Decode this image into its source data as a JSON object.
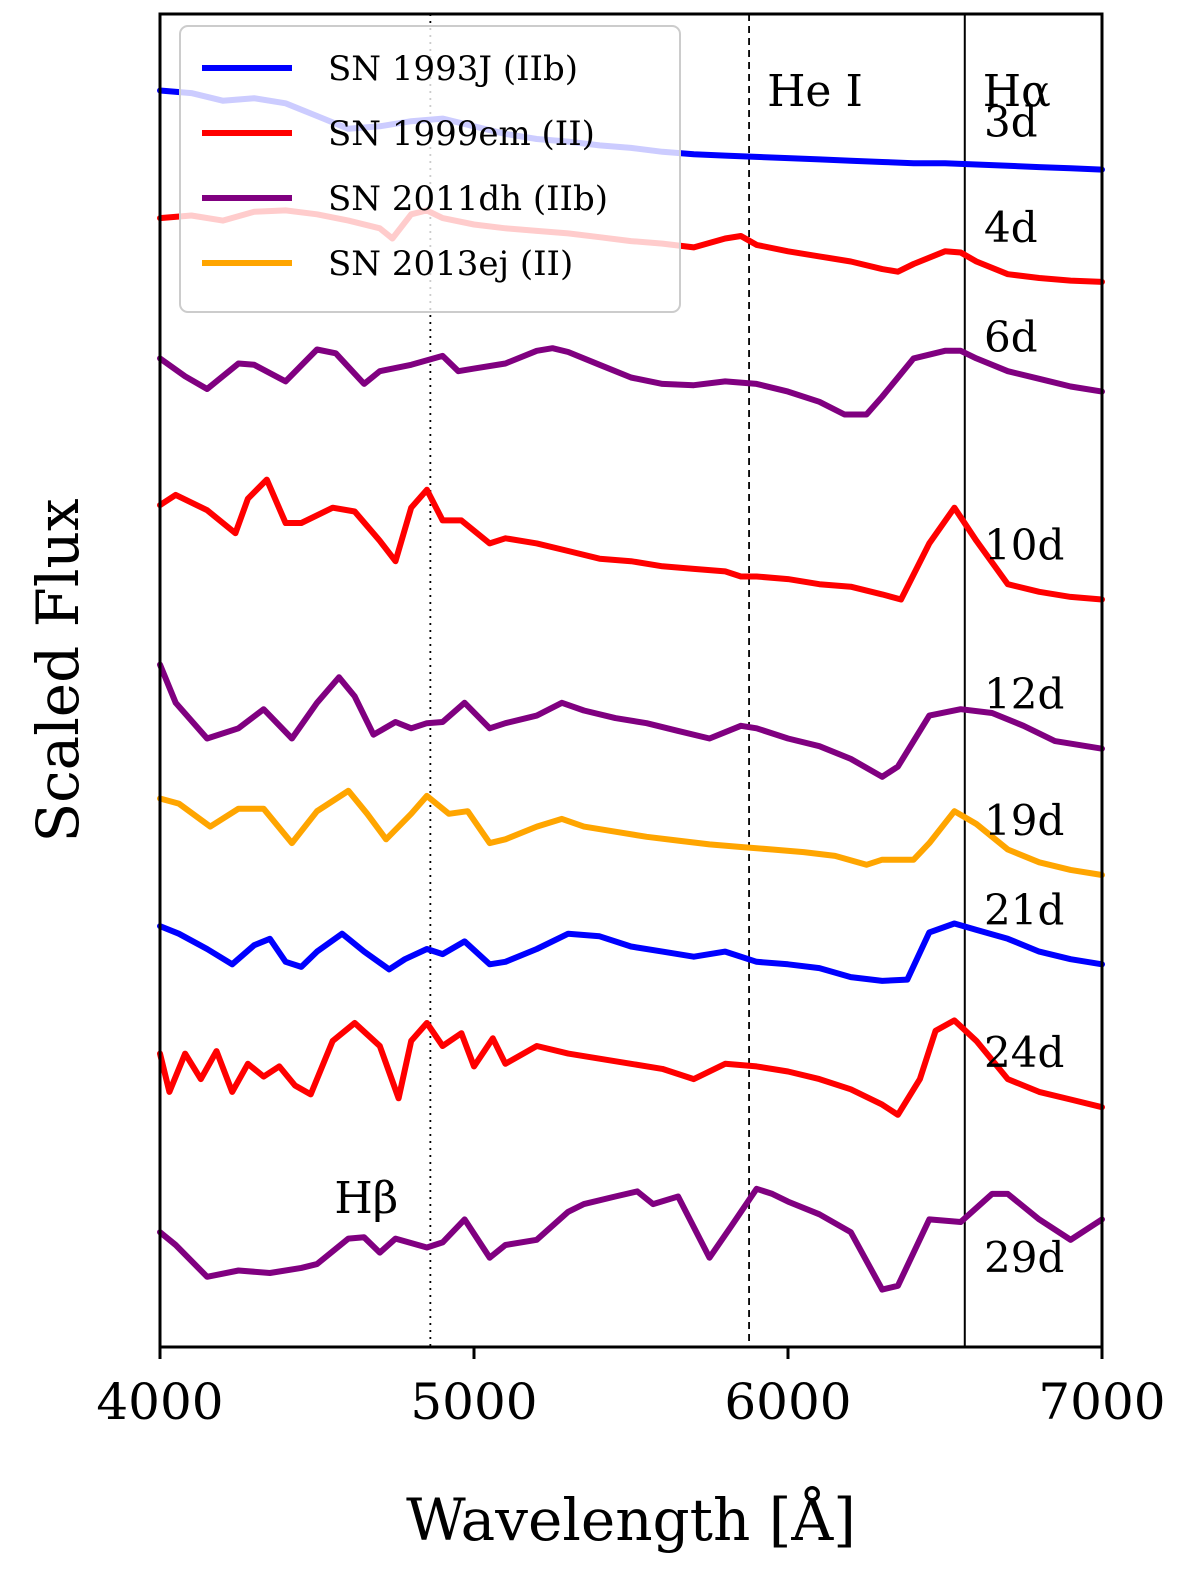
{
  "chart_data": {
    "type": "line",
    "title": "",
    "xlabel": "Wavelength [Å]",
    "ylabel": "Scaled Flux",
    "xlim": [
      4000,
      7000
    ],
    "x_ticks": [
      4000,
      5000,
      6000,
      7000
    ],
    "x_tick_labels": [
      "4000",
      "5000",
      "6000",
      "7000"
    ],
    "grid": false,
    "legend_position": "top-left",
    "legend": [
      {
        "name": "SN 1993J (IIb)",
        "color": "#0000ff"
      },
      {
        "name": "SN 1999em (II)",
        "color": "#ff0000"
      },
      {
        "name": "SN 2011dh (IIb)",
        "color": "#800080"
      },
      {
        "name": "SN 2013ej (II)",
        "color": "#ffa500"
      }
    ],
    "reference_lines": [
      {
        "label": "Hβ",
        "wavelength": 4861,
        "style": "dotted"
      },
      {
        "label": "He I",
        "wavelength": 5876,
        "style": "dashed"
      },
      {
        "label": "Hα",
        "wavelength": 6563,
        "style": "solid"
      }
    ],
    "series": [
      {
        "epoch": "3d",
        "object": "SN 1993J (IIb)",
        "color": "#0000ff",
        "offset": 8.4,
        "wavelength": [
          4000,
          4100,
          4200,
          4300,
          4400,
          4500,
          4600,
          4700,
          4800,
          4900,
          5000,
          5100,
          5200,
          5300,
          5400,
          5500,
          5600,
          5700,
          5800,
          5900,
          6000,
          6100,
          6200,
          6300,
          6400,
          6500,
          6600,
          6700,
          6800,
          6900,
          7000
        ],
        "flux": [
          0.0,
          -0.02,
          -0.08,
          -0.06,
          -0.1,
          -0.2,
          -0.3,
          -0.28,
          -0.24,
          -0.22,
          -0.28,
          -0.34,
          -0.38,
          -0.4,
          -0.43,
          -0.45,
          -0.48,
          -0.5,
          -0.51,
          -0.52,
          -0.53,
          -0.54,
          -0.55,
          -0.56,
          -0.57,
          -0.57,
          -0.58,
          -0.59,
          -0.6,
          -0.61,
          -0.62
        ]
      },
      {
        "epoch": "4d",
        "object": "SN 1999em (II)",
        "color": "#ff0000",
        "offset": 7.4,
        "wavelength": [
          4000,
          4100,
          4200,
          4300,
          4400,
          4500,
          4600,
          4700,
          4740,
          4800,
          4850,
          4900,
          5000,
          5100,
          5200,
          5300,
          5400,
          5500,
          5600,
          5700,
          5800,
          5850,
          5900,
          6000,
          6100,
          6200,
          6300,
          6350,
          6400,
          6500,
          6550,
          6600,
          6700,
          6800,
          6900,
          7000
        ],
        "flux": [
          0.0,
          0.02,
          -0.02,
          0.05,
          0.06,
          0.03,
          -0.02,
          -0.08,
          -0.16,
          0.03,
          0.06,
          0.0,
          -0.05,
          -0.08,
          -0.1,
          -0.12,
          -0.15,
          -0.18,
          -0.2,
          -0.23,
          -0.16,
          -0.14,
          -0.21,
          -0.26,
          -0.3,
          -0.34,
          -0.4,
          -0.42,
          -0.36,
          -0.26,
          -0.27,
          -0.34,
          -0.44,
          -0.47,
          -0.49,
          -0.5
        ]
      },
      {
        "epoch": "6d",
        "object": "SN 2011dh (IIb)",
        "color": "#800080",
        "offset": 6.3,
        "wavelength": [
          4000,
          4080,
          4150,
          4250,
          4300,
          4400,
          4500,
          4560,
          4650,
          4700,
          4800,
          4900,
          4950,
          5000,
          5100,
          5200,
          5250,
          5300,
          5400,
          5500,
          5600,
          5700,
          5800,
          5900,
          6000,
          6100,
          6180,
          6250,
          6300,
          6400,
          6500,
          6550,
          6600,
          6700,
          6800,
          6900,
          7000
        ],
        "flux": [
          0.0,
          -0.14,
          -0.24,
          -0.04,
          -0.05,
          -0.18,
          0.07,
          0.04,
          -0.2,
          -0.1,
          -0.05,
          0.02,
          -0.1,
          -0.08,
          -0.04,
          0.06,
          0.08,
          0.05,
          -0.05,
          -0.15,
          -0.2,
          -0.21,
          -0.18,
          -0.2,
          -0.26,
          -0.34,
          -0.44,
          -0.44,
          -0.3,
          0.0,
          0.06,
          0.06,
          0.0,
          -0.1,
          -0.16,
          -0.22,
          -0.26
        ]
      },
      {
        "epoch": "10d",
        "object": "SN 1999em (II)",
        "color": "#ff0000",
        "offset": 5.15,
        "wavelength": [
          4000,
          4050,
          4150,
          4240,
          4280,
          4340,
          4400,
          4450,
          4550,
          4620,
          4700,
          4750,
          4800,
          4850,
          4900,
          4960,
          5050,
          5100,
          5200,
          5300,
          5400,
          5500,
          5600,
          5700,
          5800,
          5850,
          5900,
          6000,
          6100,
          6200,
          6300,
          6360,
          6450,
          6530,
          6600,
          6700,
          6800,
          6900,
          7000
        ],
        "flux": [
          0.0,
          0.08,
          -0.04,
          -0.22,
          0.05,
          0.2,
          -0.14,
          -0.14,
          -0.02,
          -0.05,
          -0.28,
          -0.44,
          -0.02,
          0.12,
          -0.12,
          -0.12,
          -0.3,
          -0.26,
          -0.3,
          -0.36,
          -0.42,
          -0.44,
          -0.48,
          -0.5,
          -0.52,
          -0.56,
          -0.56,
          -0.58,
          -0.62,
          -0.64,
          -0.7,
          -0.74,
          -0.3,
          -0.02,
          -0.28,
          -0.62,
          -0.68,
          -0.72,
          -0.74
        ]
      },
      {
        "epoch": "12d",
        "object": "SN 2011dh (IIb)",
        "color": "#800080",
        "offset": 3.9,
        "wavelength": [
          4000,
          4050,
          4150,
          4250,
          4330,
          4420,
          4500,
          4570,
          4620,
          4680,
          4750,
          4800,
          4850,
          4900,
          4970,
          5050,
          5100,
          5200,
          5280,
          5350,
          5450,
          5550,
          5650,
          5750,
          5850,
          5900,
          6000,
          6100,
          6200,
          6300,
          6350,
          6450,
          6550,
          6650,
          6750,
          6850,
          7000
        ],
        "flux": [
          0.0,
          -0.3,
          -0.58,
          -0.5,
          -0.35,
          -0.58,
          -0.3,
          -0.1,
          -0.25,
          -0.55,
          -0.45,
          -0.5,
          -0.46,
          -0.45,
          -0.3,
          -0.5,
          -0.46,
          -0.4,
          -0.3,
          -0.36,
          -0.42,
          -0.46,
          -0.52,
          -0.58,
          -0.48,
          -0.5,
          -0.58,
          -0.64,
          -0.74,
          -0.88,
          -0.8,
          -0.4,
          -0.35,
          -0.38,
          -0.48,
          -0.6,
          -0.66
        ]
      },
      {
        "epoch": "19d",
        "object": "SN 2013ej (II)",
        "color": "#ffa500",
        "offset": 2.85,
        "wavelength": [
          4000,
          4060,
          4160,
          4250,
          4330,
          4420,
          4500,
          4600,
          4660,
          4720,
          4800,
          4850,
          4920,
          4980,
          5050,
          5100,
          5200,
          5280,
          5350,
          5450,
          5550,
          5650,
          5750,
          5850,
          5950,
          6050,
          6150,
          6250,
          6300,
          6400,
          6450,
          6530,
          6600,
          6700,
          6800,
          6900,
          7000
        ],
        "flux": [
          0.0,
          -0.04,
          -0.22,
          -0.08,
          -0.08,
          -0.35,
          -0.1,
          0.06,
          -0.12,
          -0.32,
          -0.12,
          0.02,
          -0.12,
          -0.1,
          -0.35,
          -0.32,
          -0.22,
          -0.16,
          -0.22,
          -0.26,
          -0.3,
          -0.33,
          -0.36,
          -0.38,
          -0.4,
          -0.42,
          -0.45,
          -0.52,
          -0.48,
          -0.48,
          -0.35,
          -0.1,
          -0.2,
          -0.4,
          -0.5,
          -0.56,
          -0.6
        ]
      },
      {
        "epoch": "21d",
        "object": "SN 1993J (IIb)",
        "color": "#0000ff",
        "offset": 1.85,
        "wavelength": [
          4000,
          4060,
          4150,
          4230,
          4300,
          4350,
          4400,
          4450,
          4500,
          4580,
          4650,
          4730,
          4780,
          4850,
          4900,
          4970,
          5050,
          5100,
          5200,
          5300,
          5400,
          5500,
          5600,
          5700,
          5800,
          5900,
          6000,
          6100,
          6200,
          6300,
          6380,
          6450,
          6530,
          6600,
          6700,
          6800,
          6900,
          7000
        ],
        "flux": [
          0.0,
          -0.06,
          -0.18,
          -0.3,
          -0.15,
          -0.1,
          -0.28,
          -0.32,
          -0.2,
          -0.06,
          -0.2,
          -0.34,
          -0.26,
          -0.18,
          -0.22,
          -0.12,
          -0.3,
          -0.28,
          -0.18,
          -0.06,
          -0.08,
          -0.16,
          -0.2,
          -0.24,
          -0.2,
          -0.28,
          -0.3,
          -0.33,
          -0.4,
          -0.43,
          -0.42,
          -0.05,
          0.02,
          -0.03,
          -0.1,
          -0.2,
          -0.26,
          -0.3
        ]
      },
      {
        "epoch": "24d",
        "object": "SN 1999em (II)",
        "color": "#ff0000",
        "offset": 0.85,
        "wavelength": [
          4000,
          4030,
          4080,
          4130,
          4180,
          4230,
          4280,
          4330,
          4380,
          4430,
          4480,
          4550,
          4620,
          4700,
          4760,
          4800,
          4850,
          4900,
          4960,
          5000,
          5060,
          5100,
          5200,
          5300,
          5400,
          5500,
          5600,
          5700,
          5800,
          5900,
          6000,
          6100,
          6200,
          6300,
          6350,
          6420,
          6470,
          6530,
          6600,
          6700,
          6800,
          6900,
          7000
        ],
        "flux": [
          0.0,
          -0.3,
          0.0,
          -0.2,
          0.02,
          -0.3,
          -0.08,
          -0.18,
          -0.1,
          -0.25,
          -0.32,
          0.1,
          0.24,
          0.06,
          -0.35,
          0.1,
          0.24,
          0.06,
          0.16,
          -0.1,
          0.12,
          -0.08,
          0.06,
          0.0,
          -0.04,
          -0.08,
          -0.12,
          -0.2,
          -0.08,
          -0.1,
          -0.14,
          -0.2,
          -0.28,
          -0.4,
          -0.48,
          -0.2,
          0.18,
          0.26,
          0.1,
          -0.2,
          -0.3,
          -0.36,
          -0.42
        ]
      },
      {
        "epoch": "29d",
        "object": "SN 2011dh (IIb)",
        "color": "#800080",
        "offset": -0.55,
        "wavelength": [
          4000,
          4050,
          4150,
          4250,
          4350,
          4450,
          4500,
          4600,
          4650,
          4700,
          4750,
          4850,
          4900,
          4970,
          5050,
          5100,
          5200,
          5300,
          5350,
          5450,
          5520,
          5570,
          5650,
          5750,
          5820,
          5900,
          5950,
          6000,
          6100,
          6200,
          6300,
          6350,
          6450,
          6550,
          6650,
          6700,
          6800,
          6900,
          7000
        ],
        "flux": [
          0.0,
          -0.1,
          -0.35,
          -0.3,
          -0.32,
          -0.28,
          -0.25,
          -0.05,
          -0.04,
          -0.16,
          -0.05,
          -0.12,
          -0.08,
          0.1,
          -0.2,
          -0.1,
          -0.06,
          0.16,
          0.22,
          0.28,
          0.32,
          0.22,
          0.28,
          -0.2,
          0.05,
          0.34,
          0.3,
          0.24,
          0.14,
          0.0,
          -0.45,
          -0.42,
          0.1,
          0.08,
          0.3,
          0.3,
          0.1,
          -0.06,
          0.1
        ]
      }
    ],
    "epoch_labels": [
      "3d",
      "4d",
      "6d",
      "10d",
      "12d",
      "19d",
      "21d",
      "24d",
      "29d"
    ]
  }
}
